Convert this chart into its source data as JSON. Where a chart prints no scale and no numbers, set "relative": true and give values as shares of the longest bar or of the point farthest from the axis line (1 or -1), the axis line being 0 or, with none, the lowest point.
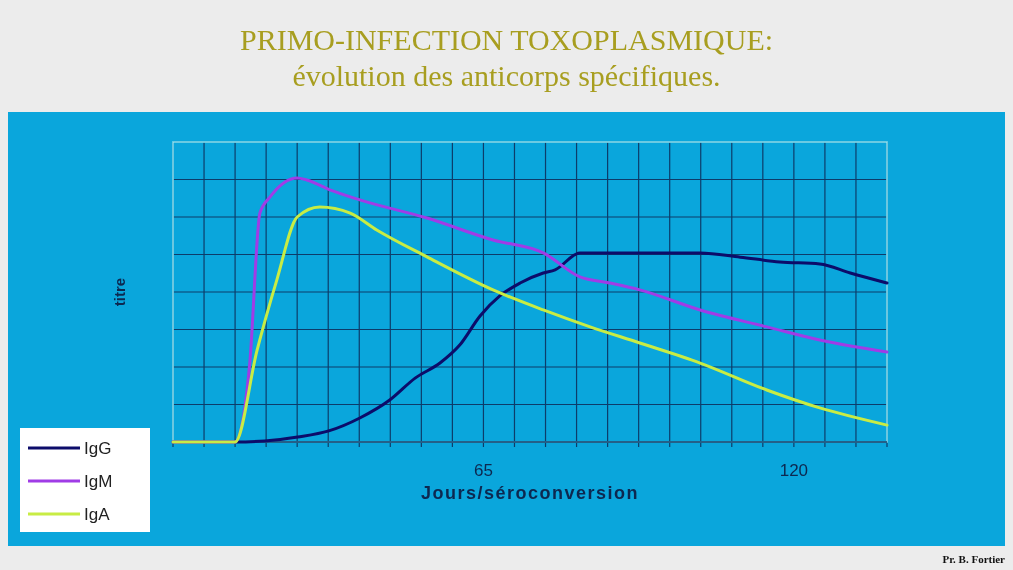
{
  "chart_data": {
    "type": "line",
    "title": "PRIMO-INFECTION TOXOPLASMIQUE:",
    "subtitle": "évolution des anticorps spécifiques.",
    "xlabel": "Jours/séroconversion",
    "ylabel": "titre",
    "annotations": [
      "Pr. B. Fortier"
    ],
    "relative": true,
    "xlim": [
      10,
      136.5
    ],
    "xticks": [
      {
        "value": 10,
        "label": null
      },
      {
        "value": 15.5,
        "label": null
      },
      {
        "value": 21,
        "label": null
      },
      {
        "value": 26.5,
        "label": null
      },
      {
        "value": 32,
        "label": null
      },
      {
        "value": 37.5,
        "label": null
      },
      {
        "value": 43,
        "label": null
      },
      {
        "value": 48.5,
        "label": null
      },
      {
        "value": 54,
        "label": null
      },
      {
        "value": 59.5,
        "label": null
      },
      65,
      {
        "value": 70.5,
        "label": null
      },
      {
        "value": 76,
        "label": null
      },
      {
        "value": 81.5,
        "label": null
      },
      {
        "value": 87,
        "label": null
      },
      {
        "value": 92.5,
        "label": null
      },
      {
        "value": 98,
        "label": null
      },
      {
        "value": 103.5,
        "label": null
      },
      {
        "value": 109,
        "label": null
      },
      {
        "value": 114.5,
        "label": null
      },
      120,
      {
        "value": 125.5,
        "label": null
      },
      {
        "value": 131,
        "label": null
      },
      {
        "value": 136.5,
        "label": null
      }
    ],
    "grid": true,
    "legend": "bottom left",
    "line_style": "solid",
    "marker": "none",
    "series": [
      {
        "name": "IgG",
        "color": "#0c0c6a",
        "x": [
          10,
          21.0,
          26.3,
          32.1,
          37.6,
          43.1,
          48.4,
          52.9,
          57.3,
          60.8,
          64.4,
          67.9,
          71.5,
          75.6,
          77.7,
          82.1,
          89.2,
          103.4,
          110.5,
          117.5,
          124.6,
          130.0,
          136.5
        ],
        "values": [
          0,
          0,
          0.004,
          0.019,
          0.042,
          0.091,
          0.159,
          0.242,
          0.299,
          0.367,
          0.477,
          0.553,
          0.602,
          0.64,
          0.652,
          0.716,
          0.716,
          0.716,
          0.7,
          0.682,
          0.674,
          0.64,
          0.602
        ]
      },
      {
        "name": "IgM",
        "color": "#a03ce6",
        "x": [
          10,
          21.0,
          23.6,
          25.4,
          27.2,
          32.0,
          33.7,
          37.8,
          43.1,
          55.0,
          66.7,
          75.6,
          82.1,
          87.4,
          92.7,
          103.4,
          115.2,
          124.6,
          136.5
        ],
        "values": [
          0,
          0,
          0.299,
          0.867,
          0.928,
          1,
          0.992,
          0.955,
          0.917,
          0.848,
          0.765,
          0.716,
          0.625,
          0.602,
          0.576,
          0.5,
          0.436,
          0.386,
          0.341
        ]
      },
      {
        "name": "IgA",
        "color": "#c8ec44",
        "x": [
          10,
          21.0,
          24.9,
          28.4,
          32.0,
          36.0,
          41.4,
          46.1,
          55.0,
          66.7,
          75.6,
          83.9,
          92.7,
          103.4,
          115.2,
          124.6,
          136.5
        ],
        "values": [
          0,
          0,
          0.348,
          0.614,
          0.852,
          0.89,
          0.867,
          0.803,
          0.701,
          0.576,
          0.5,
          0.436,
          0.375,
          0.299,
          0.197,
          0.129,
          0.064
        ]
      }
    ]
  }
}
